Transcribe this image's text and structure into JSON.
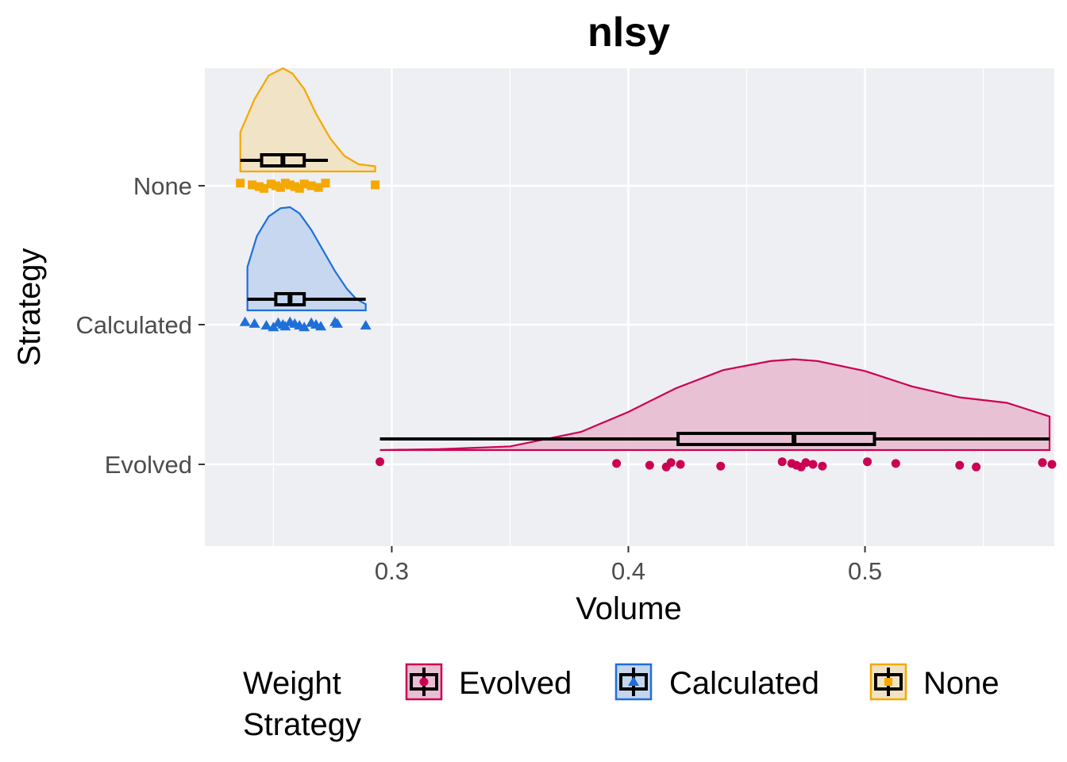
{
  "chart_data": {
    "type": "raincloud",
    "title": "nlsy",
    "xlabel": "Volume",
    "ylabel": "Strategy",
    "xlim": [
      0.221,
      0.58
    ],
    "x_ticks": [
      0.3,
      0.4,
      0.5
    ],
    "x_tick_labels": [
      "0.3",
      "0.4",
      "0.5"
    ],
    "categories": [
      "None",
      "Calculated",
      "Evolved"
    ],
    "grid": true,
    "legend": {
      "title": [
        "Weight",
        "Strategy"
      ],
      "placement": "bottom",
      "entries": [
        "Evolved",
        "Calculated",
        "None"
      ]
    },
    "series": [
      {
        "name": "Evolved",
        "color": "#cc0052",
        "fill": "#e8bfd2",
        "marker": "circle",
        "box": {
          "min": 0.295,
          "q1": 0.421,
          "median": 0.47,
          "q3": 0.504,
          "max": 0.578
        },
        "points": [
          0.295,
          0.395,
          0.409,
          0.416,
          0.418,
          0.422,
          0.439,
          0.465,
          0.469,
          0.471,
          0.473,
          0.475,
          0.478,
          0.482,
          0.501,
          0.513,
          0.54,
          0.547,
          0.575,
          0.579
        ],
        "density": {
          "x": [
            0.295,
            0.32,
            0.35,
            0.38,
            0.4,
            0.42,
            0.44,
            0.46,
            0.47,
            0.48,
            0.5,
            0.52,
            0.54,
            0.56,
            0.578
          ],
          "y": [
            0.0,
            0.01,
            0.04,
            0.2,
            0.42,
            0.68,
            0.88,
            0.98,
            1.0,
            0.98,
            0.87,
            0.7,
            0.58,
            0.52,
            0.37
          ]
        }
      },
      {
        "name": "Calculated",
        "color": "#1f6fd9",
        "fill": "#c4d5ee",
        "marker": "triangle",
        "box": {
          "min": 0.239,
          "q1": 0.251,
          "median": 0.257,
          "q3": 0.263,
          "max": 0.289
        },
        "points": [
          0.238,
          0.242,
          0.247,
          0.25,
          0.252,
          0.254,
          0.255,
          0.257,
          0.259,
          0.261,
          0.263,
          0.266,
          0.268,
          0.27,
          0.276,
          0.277,
          0.289
        ],
        "density": {
          "x": [
            0.239,
            0.243,
            0.248,
            0.253,
            0.257,
            0.261,
            0.266,
            0.271,
            0.276,
            0.281,
            0.285,
            0.289
          ],
          "y": [
            0.42,
            0.72,
            0.91,
            0.99,
            1.0,
            0.94,
            0.78,
            0.58,
            0.38,
            0.21,
            0.11,
            0.06
          ]
        }
      },
      {
        "name": "None",
        "color": "#f5a800",
        "fill": "#f1e2c2",
        "marker": "square",
        "box": {
          "min": 0.236,
          "q1": 0.245,
          "median": 0.254,
          "q3": 0.263,
          "max": 0.273
        },
        "points": [
          0.236,
          0.241,
          0.244,
          0.246,
          0.249,
          0.251,
          0.253,
          0.255,
          0.257,
          0.259,
          0.261,
          0.263,
          0.266,
          0.269,
          0.272,
          0.293
        ],
        "density": {
          "x": [
            0.236,
            0.242,
            0.248,
            0.254,
            0.258,
            0.263,
            0.268,
            0.274,
            0.28,
            0.286,
            0.293
          ],
          "y": [
            0.38,
            0.7,
            0.93,
            1.0,
            0.95,
            0.8,
            0.56,
            0.32,
            0.15,
            0.07,
            0.05
          ]
        }
      }
    ]
  }
}
